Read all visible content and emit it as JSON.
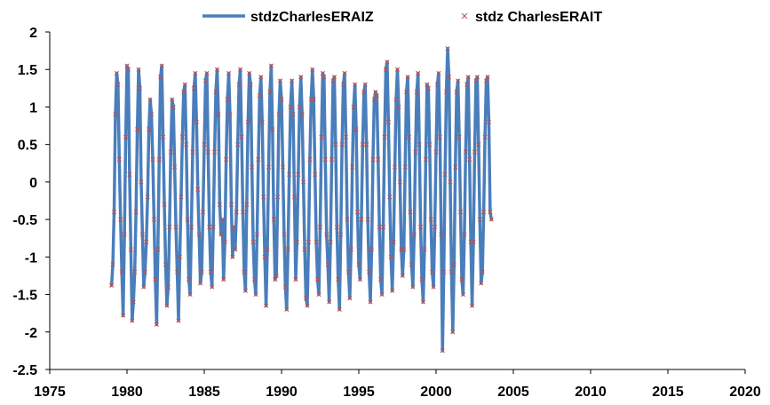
{
  "chart_data": {
    "type": "line",
    "title": "",
    "xlabel": "",
    "ylabel": "",
    "xlim": [
      1975,
      2020
    ],
    "ylim": [
      -2.5,
      2
    ],
    "xticks": [
      1975,
      1980,
      1985,
      1990,
      1995,
      2000,
      2005,
      2010,
      2015,
      2020
    ],
    "yticks": [
      -2.5,
      -2,
      -1.5,
      -1,
      -0.5,
      0,
      0.5,
      1,
      1.5,
      2
    ],
    "legend_position": "top-center",
    "x_start": 1979.0,
    "x_step": 0.08333,
    "series": [
      {
        "name": "stdzCharlesERAIZ",
        "style": "line",
        "color": "#4a7ebb",
        "values": [
          -1.38,
          -1.1,
          -0.4,
          0.9,
          1.45,
          1.3,
          0.3,
          -0.5,
          -1.2,
          -1.78,
          -0.7,
          0.6,
          1.55,
          1.5,
          0.1,
          -0.9,
          -1.85,
          -1.6,
          -1.2,
          -0.4,
          0.7,
          1.5,
          1.25,
          0.0,
          -0.7,
          -1.4,
          -1.2,
          -0.8,
          -0.2,
          0.7,
          1.1,
          0.9,
          0.3,
          -0.5,
          -1.3,
          -1.9,
          -0.9,
          0.3,
          1.4,
          1.55,
          0.6,
          -0.3,
          -1.1,
          -1.65,
          -1.4,
          -0.6,
          0.4,
          1.1,
          1.0,
          0.2,
          -0.6,
          -1.2,
          -1.85,
          -1.0,
          -0.2,
          0.6,
          1.2,
          1.3,
          0.5,
          -0.5,
          -1.3,
          -1.5,
          -0.6,
          0.4,
          1.25,
          1.45,
          0.8,
          -0.1,
          -0.7,
          -1.35,
          -1.2,
          -0.4,
          0.5,
          1.35,
          1.45,
          0.4,
          -0.6,
          -1.2,
          -1.4,
          -0.6,
          0.4,
          1.2,
          1.5,
          0.9,
          -0.3,
          -0.7,
          -0.5,
          -1.3,
          -0.8,
          0.3,
          1.1,
          1.45,
          0.9,
          -0.3,
          -1.0,
          -0.6,
          -0.9,
          -0.4,
          0.5,
          1.3,
          1.5,
          0.6,
          -0.4,
          -1.2,
          -1.45,
          -0.3,
          0.8,
          1.45,
          1.3,
          0.2,
          -0.8,
          -1.3,
          -1.5,
          -0.7,
          0.3,
          1.15,
          1.4,
          0.8,
          -0.2,
          -1.0,
          -1.65,
          -0.9,
          0.2,
          1.2,
          1.55,
          0.7,
          -0.5,
          -1.3,
          -1.25,
          -0.2,
          0.9,
          1.35,
          1.1,
          0.2,
          -0.7,
          -1.4,
          -1.7,
          -0.9,
          0.1,
          1.0,
          1.35,
          0.9,
          -0.2,
          -1.3,
          -0.8,
          0.1,
          1.0,
          1.4,
          0.9,
          0.0,
          -0.9,
          -1.55,
          -1.65,
          -0.8,
          0.3,
          1.1,
          1.5,
          1.1,
          0.1,
          -0.8,
          -1.3,
          -1.5,
          -0.6,
          0.6,
          1.45,
          1.4,
          0.3,
          -0.7,
          -1.1,
          -1.6,
          -0.8,
          0.3,
          1.35,
          1.4,
          0.5,
          -0.6,
          -1.3,
          -1.7,
          -0.7,
          0.5,
          1.3,
          1.45,
          0.6,
          -0.5,
          -1.2,
          -1.55,
          -0.9,
          0.2,
          1.0,
          1.3,
          0.7,
          -0.4,
          -1.1,
          -1.3,
          -0.5,
          0.5,
          1.2,
          1.3,
          0.5,
          -0.5,
          -1.2,
          -1.6,
          -0.9,
          0.3,
          1.1,
          1.2,
          1.15,
          0.3,
          -0.6,
          -1.3,
          -1.5,
          -0.6,
          0.6,
          1.5,
          1.6,
          0.8,
          -0.2,
          -1.0,
          -1.45,
          -0.8,
          0.2,
          1.1,
          1.5,
          1.0,
          0.0,
          -0.9,
          -1.25,
          -0.9,
          0.2,
          1.2,
          1.4,
          0.6,
          -0.4,
          -1.1,
          -1.4,
          -0.7,
          0.4,
          1.2,
          1.45,
          0.5,
          -0.6,
          -1.3,
          -1.6,
          -0.9,
          0.3,
          1.3,
          1.25,
          0.5,
          -0.5,
          -1.2,
          -1.4,
          -0.6,
          0.4,
          1.3,
          1.45,
          0.6,
          -0.7,
          -2.25,
          -1.2,
          0.1,
          1.2,
          1.78,
          1.4,
          0.0,
          -1.2,
          -2.0,
          -1.1,
          0.2,
          1.2,
          1.35,
          0.6,
          -0.4,
          -1.3,
          -1.5,
          -0.7,
          0.4,
          1.3,
          1.4,
          0.3,
          -0.8,
          -1.65,
          -0.8,
          0.4,
          1.35,
          1.4,
          0.5,
          -0.5,
          -1.35,
          -1.2,
          -0.4,
          0.6,
          1.35,
          1.4,
          0.8,
          -0.4,
          -0.5
        ]
      },
      {
        "name": "stdz CharlesERAIT",
        "style": "markers",
        "marker": "x",
        "color": "#c0504d"
      }
    ]
  },
  "legend": {
    "line_label": "stdzCharlesERAIZ",
    "marker_label": "stdz CharlesERAIT"
  }
}
